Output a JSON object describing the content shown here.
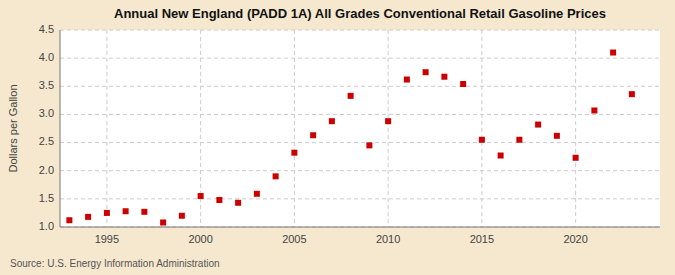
{
  "chart_data": {
    "type": "scatter",
    "title": "Annual New England (PADD 1A) All Grades Conventional Retail Gasoline Prices",
    "ylabel": "Dollars per Gallon",
    "source": "Source: U.S. Energy Information Administration",
    "x": [
      1993,
      1994,
      1995,
      1996,
      1997,
      1998,
      1999,
      2000,
      2001,
      2002,
      2003,
      2004,
      2005,
      2006,
      2007,
      2008,
      2009,
      2010,
      2011,
      2012,
      2013,
      2014,
      2015,
      2016,
      2017,
      2018,
      2019,
      2020,
      2021,
      2022,
      2023
    ],
    "values": [
      1.12,
      1.18,
      1.25,
      1.28,
      1.27,
      1.08,
      1.2,
      1.55,
      1.48,
      1.43,
      1.59,
      1.9,
      2.32,
      2.63,
      2.88,
      3.33,
      2.45,
      2.88,
      3.62,
      3.75,
      3.67,
      3.54,
      2.55,
      2.27,
      2.55,
      2.82,
      2.62,
      2.23,
      3.07,
      4.1,
      3.36
    ],
    "color": "#cc0000",
    "marker": "square",
    "xlim": [
      1992.5,
      2024.5
    ],
    "ylim": [
      1.0,
      4.5
    ],
    "xticks": [
      1995,
      2000,
      2005,
      2010,
      2015,
      2020
    ],
    "yticks": [
      {
        "value": 1.0,
        "label": "1.0"
      },
      1.5,
      {
        "value": 2.0,
        "label": "2.0"
      },
      2.5,
      {
        "value": 3.0,
        "label": "3.0"
      },
      3.5,
      {
        "value": 4.0,
        "label": "4.0"
      },
      4.5
    ],
    "grid": true
  }
}
